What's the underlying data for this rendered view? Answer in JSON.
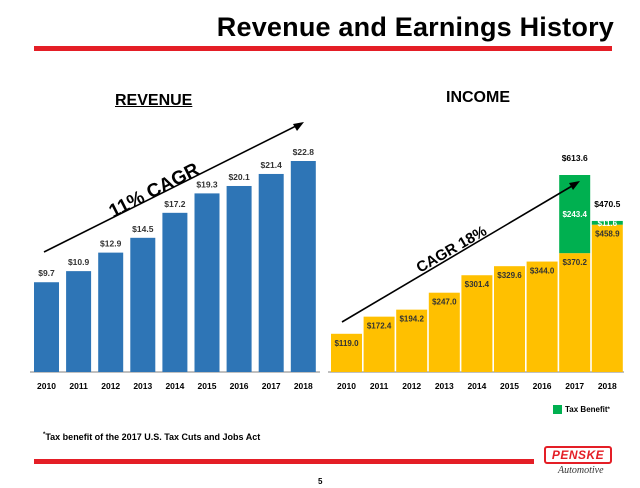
{
  "slide": {
    "title": "Revenue and Earnings History",
    "page_number": "5",
    "footnote": "Tax benefit of the 2017 U.S. Tax Cuts and Jobs Act",
    "footnote_mark": "*"
  },
  "logo": {
    "name": "PENSKE",
    "sub": "Automotive"
  },
  "colors": {
    "revenue_bar": "#2e75b6",
    "income_bar": "#ffc000",
    "tax_benefit": "#00b050",
    "accent": "#e41e26"
  },
  "chart_data": [
    {
      "type": "bar",
      "title": "REVENUE",
      "categories": [
        "2010",
        "2011",
        "2012",
        "2013",
        "2014",
        "2015",
        "2016",
        "2017",
        "2018"
      ],
      "values": [
        9.7,
        10.9,
        12.9,
        14.5,
        17.2,
        19.3,
        20.1,
        21.4,
        22.8
      ],
      "value_labels": [
        "$9.7",
        "$10.9",
        "$12.9",
        "$14.5",
        "$17.2",
        "$19.3",
        "$20.1",
        "$21.4",
        "$22.8"
      ],
      "annotation": "11% CAGR",
      "ylim": [
        0,
        25
      ],
      "grid": false
    },
    {
      "type": "bar",
      "stacked": true,
      "title": "INCOME",
      "categories": [
        "2010",
        "2011",
        "2012",
        "2013",
        "2014",
        "2015",
        "2016",
        "2017",
        "2018"
      ],
      "series": [
        {
          "name": "",
          "values": [
            119.0,
            172.4,
            194.2,
            247.0,
            301.4,
            329.6,
            344.0,
            370.2,
            458.9
          ],
          "labels": [
            "$119.0",
            "$172.4",
            "$194.2",
            "$247.0",
            "$301.4",
            "$329.6",
            "$344.0",
            "$370.2",
            "$458.9"
          ]
        },
        {
          "name": "Tax Benefit*",
          "values": [
            0,
            0,
            0,
            0,
            0,
            0,
            0,
            243.4,
            11.6
          ],
          "labels": [
            "",
            "",
            "",
            "",
            "",
            "",
            "",
            "$243.4",
            "$11.6"
          ]
        }
      ],
      "totals": [
        "",
        "",
        "",
        "",
        "",
        "",
        "",
        "$613.6",
        "$470.5"
      ],
      "annotation": "CAGR 18%",
      "legend": {
        "label": "Tax Benefit",
        "mark": "*",
        "placement": "bottom-right"
      },
      "ylim": [
        0,
        700
      ],
      "grid": false
    }
  ]
}
